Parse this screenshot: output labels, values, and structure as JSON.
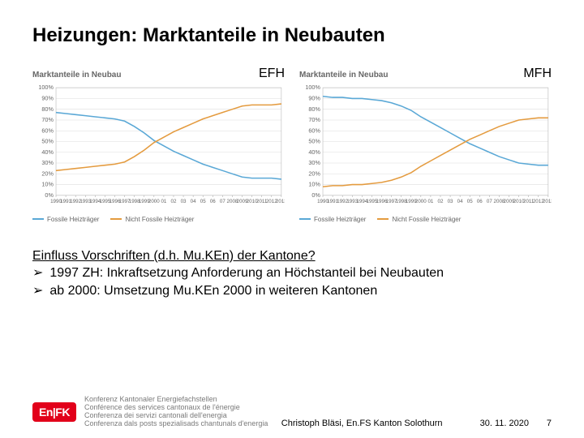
{
  "title": "Heizungen: Marktanteile in Neubauten",
  "panels": [
    {
      "label": "EFH",
      "small_title": "Marktanteile in Neubau",
      "type": "line",
      "xlabels": [
        "1990",
        "1991",
        "1992",
        "1993",
        "1994",
        "1995",
        "1996",
        "1997",
        "1998",
        "1999",
        "2000",
        "01",
        "02",
        "03",
        "04",
        "05",
        "06",
        "07",
        "2008",
        "2009",
        "2010",
        "2011",
        "2012",
        "2013"
      ],
      "ylabels": [
        "0%",
        "10%",
        "20%",
        "30%",
        "40%",
        "50%",
        "60%",
        "70%",
        "80%",
        "90%",
        "100%"
      ],
      "ylim": [
        0,
        100
      ],
      "series": [
        {
          "name": "Fossile Heizträger",
          "color": "#5aa8d6",
          "y": [
            77,
            76,
            75,
            74,
            73,
            72,
            71,
            69,
            64,
            58,
            51,
            46,
            41,
            37,
            33,
            29,
            26,
            23,
            20,
            17,
            16,
            16,
            16,
            15
          ]
        },
        {
          "name": "Nicht Fossile Heizträger",
          "color": "#e49b3f",
          "y": [
            23,
            24,
            25,
            26,
            27,
            28,
            29,
            31,
            36,
            42,
            49,
            54,
            59,
            63,
            67,
            71,
            74,
            77,
            80,
            83,
            84,
            84,
            84,
            85
          ]
        }
      ],
      "grid_color": "#dddddd",
      "background_color": "#ffffff",
      "line_width": 1.5,
      "label_fontsize": 7
    },
    {
      "label": "MFH",
      "small_title": "Marktanteile in Neubau",
      "type": "line",
      "xlabels": [
        "1990",
        "1991",
        "1992",
        "1993",
        "1994",
        "1995",
        "1996",
        "1997",
        "1998",
        "1999",
        "2000",
        "01",
        "02",
        "03",
        "04",
        "05",
        "06",
        "07",
        "2008",
        "2009",
        "2010",
        "2011",
        "2012",
        "2013"
      ],
      "ylabels": [
        "0%",
        "10%",
        "20%",
        "30%",
        "40%",
        "50%",
        "60%",
        "70%",
        "80%",
        "90%",
        "100%"
      ],
      "ylim": [
        0,
        100
      ],
      "series": [
        {
          "name": "Fossile Heizträger",
          "color": "#5aa8d6",
          "y": [
            92,
            91,
            91,
            90,
            90,
            89,
            88,
            86,
            83,
            79,
            73,
            68,
            63,
            58,
            53,
            48,
            44,
            40,
            36,
            33,
            30,
            29,
            28,
            28
          ]
        },
        {
          "name": "Nicht Fossile Heizträger",
          "color": "#e49b3f",
          "y": [
            8,
            9,
            9,
            10,
            10,
            11,
            12,
            14,
            17,
            21,
            27,
            32,
            37,
            42,
            47,
            52,
            56,
            60,
            64,
            67,
            70,
            71,
            72,
            72
          ]
        }
      ],
      "grid_color": "#dddddd",
      "background_color": "#ffffff",
      "line_width": 1.5,
      "label_fontsize": 7
    }
  ],
  "body": {
    "lead": "Einfluss Vorschriften (d.h. Mu.KEn) der Kantone?",
    "bullets": [
      "1997 ZH: Inkraftsetzung Anforderung an Höchstanteil bei Neubauten",
      "ab 2000: Umsetzung Mu.KEn 2000 in weiteren Kantonen"
    ],
    "triangle": "➢"
  },
  "footer": {
    "logo_badge": "En|FK",
    "logo_lines": [
      "Konferenz Kantonaler Energiefachstellen",
      "Conférence des services cantonaux de l'énergie",
      "Conferenza dei servizi cantonali dell'energia",
      "Conferenza dals posts spezialisads chantunals d'energia"
    ],
    "author": "Christoph Bläsi, En.FS Kanton Solothurn",
    "date": "30. 11. 2020",
    "page": "7"
  }
}
